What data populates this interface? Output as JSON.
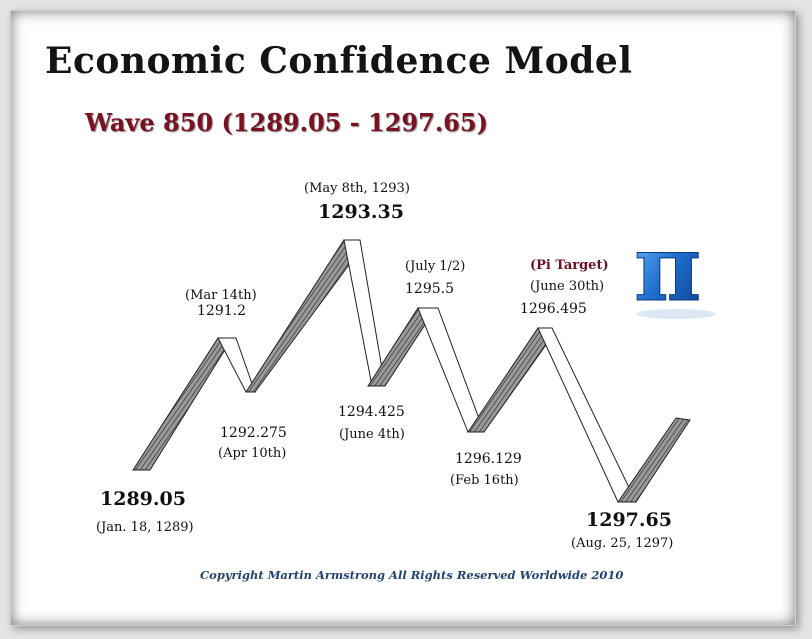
{
  "title": "Economic Confidence Model",
  "subtitle": "Wave 850  (1289.05 - 1297.65)",
  "copyright": "Copyright Martin Armstrong All Rights Reserved Worldwide 2010",
  "pi_symbol": "π",
  "pi_icon": "pi-icon",
  "colors": {
    "title": "#141414",
    "subtitle": "#7a1020",
    "copyright": "#22446e",
    "pi_blue": "#1e6fd0",
    "band_fill": "#8a8a8a"
  },
  "points": [
    {
      "name": "start",
      "value": "1289.05",
      "date": "(Jan. 18, 1289)"
    },
    {
      "name": "peak1",
      "value": "1291.2",
      "date": "(Mar 14th)"
    },
    {
      "name": "low1",
      "value": "1292.275",
      "date": "(Apr 10th)"
    },
    {
      "name": "peak2",
      "value": "1293.35",
      "date": "(May 8th, 1293)"
    },
    {
      "name": "low2",
      "value": "1294.425",
      "date": "(June 4th)"
    },
    {
      "name": "peak3",
      "value": "1295.5",
      "date": "(July 1/2)"
    },
    {
      "name": "low3",
      "value": "1296.129",
      "date": "(Feb 16th)"
    },
    {
      "name": "peak4",
      "value": "1296.495",
      "date": "(June 30th)",
      "tag": "(Pi Target)"
    },
    {
      "name": "end",
      "value": "1297.65",
      "date": "(Aug.  25,  1297)"
    }
  ]
}
